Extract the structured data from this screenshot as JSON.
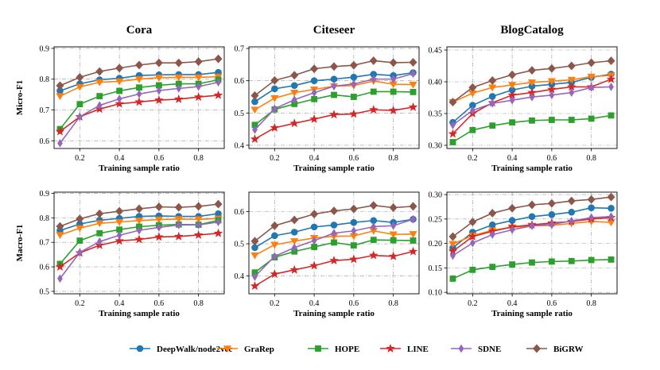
{
  "figure": {
    "xlabel": "Training sample ratio",
    "legend_location": "bottom"
  },
  "series_meta": [
    {
      "name": "DeepWalk/node2vec",
      "color": "#1f77b4",
      "marker": "circle"
    },
    {
      "name": "GraRep",
      "color": "#ff7f0e",
      "marker": "triangle-down"
    },
    {
      "name": "HOPE",
      "color": "#2ca02c",
      "marker": "square"
    },
    {
      "name": "LINE",
      "color": "#d62728",
      "marker": "star"
    },
    {
      "name": "SDNE",
      "color": "#9467bd",
      "marker": "diamond-thin"
    },
    {
      "name": "BiGRW",
      "color": "#8c564b",
      "marker": "diamond"
    }
  ],
  "chart_data": [
    {
      "type": "line",
      "title": "Cora",
      "ylabel": "Micro-F1",
      "xlabel": "Training sample ratio",
      "xlim": [
        0.07,
        0.93
      ],
      "ylim": [
        0.575,
        0.905
      ],
      "xticks": [
        0.2,
        0.4,
        0.6,
        0.8
      ],
      "xtick_labels": [
        "0.2",
        "0.4",
        "0.6",
        "0.8"
      ],
      "yticks": [
        0.6,
        0.7,
        0.8,
        0.9
      ],
      "ytick_labels": [
        "0.6",
        "0.7",
        "0.8",
        "0.9"
      ],
      "x": [
        0.1,
        0.2,
        0.3,
        0.4,
        0.5,
        0.6,
        0.7,
        0.8,
        0.9
      ],
      "series": [
        {
          "name": "DeepWalk/node2vec",
          "values": [
            0.762,
            0.785,
            0.798,
            0.803,
            0.812,
            0.814,
            0.815,
            0.815,
            0.822
          ]
        },
        {
          "name": "GraRep",
          "values": [
            0.745,
            0.775,
            0.79,
            0.793,
            0.8,
            0.805,
            0.806,
            0.806,
            0.808
          ]
        },
        {
          "name": "HOPE",
          "values": [
            0.638,
            0.719,
            0.745,
            0.762,
            0.773,
            0.78,
            0.785,
            0.785,
            0.798
          ]
        },
        {
          "name": "LINE",
          "values": [
            0.63,
            0.678,
            0.703,
            0.72,
            0.726,
            0.732,
            0.735,
            0.742,
            0.748
          ]
        },
        {
          "name": "SDNE",
          "values": [
            0.592,
            0.678,
            0.715,
            0.736,
            0.752,
            0.763,
            0.77,
            0.776,
            0.79
          ]
        },
        {
          "name": "BiGRW",
          "values": [
            0.779,
            0.806,
            0.825,
            0.836,
            0.846,
            0.853,
            0.853,
            0.857,
            0.866
          ]
        }
      ]
    },
    {
      "type": "line",
      "title": "Citeseer",
      "ylabel": "",
      "xlabel": "Training sample ratio",
      "xlim": [
        0.07,
        0.93
      ],
      "ylim": [
        0.39,
        0.705
      ],
      "xticks": [
        0.2,
        0.4,
        0.6,
        0.8
      ],
      "xtick_labels": [
        "0.2",
        "0.4",
        "0.6",
        "0.8"
      ],
      "yticks": [
        0.4,
        0.5,
        0.6,
        0.7
      ],
      "ytick_labels": [
        "0.4",
        "0.5",
        "0.6",
        "0.7"
      ],
      "x": [
        0.1,
        0.2,
        0.3,
        0.4,
        0.5,
        0.6,
        0.7,
        0.8,
        0.9
      ],
      "series": [
        {
          "name": "DeepWalk/node2vec",
          "values": [
            0.535,
            0.575,
            0.585,
            0.6,
            0.605,
            0.611,
            0.62,
            0.616,
            0.625
          ]
        },
        {
          "name": "GraRep",
          "values": [
            0.51,
            0.546,
            0.563,
            0.573,
            0.583,
            0.585,
            0.599,
            0.589,
            0.588
          ]
        },
        {
          "name": "HOPE",
          "values": [
            0.463,
            0.511,
            0.528,
            0.543,
            0.556,
            0.55,
            0.566,
            0.566,
            0.565
          ]
        },
        {
          "name": "LINE",
          "values": [
            0.419,
            0.454,
            0.468,
            0.481,
            0.495,
            0.497,
            0.51,
            0.508,
            0.518
          ]
        },
        {
          "name": "SDNE",
          "values": [
            0.448,
            0.513,
            0.541,
            0.563,
            0.583,
            0.59,
            0.605,
            0.605,
            0.622
          ]
        },
        {
          "name": "BiGRW",
          "values": [
            0.554,
            0.601,
            0.617,
            0.637,
            0.644,
            0.648,
            0.662,
            0.656,
            0.657
          ]
        }
      ]
    },
    {
      "type": "line",
      "title": "BlogCatalog",
      "ylabel": "",
      "xlabel": "Training sample ratio",
      "xlim": [
        0.07,
        0.93
      ],
      "ylim": [
        0.295,
        0.455
      ],
      "xticks": [
        0.2,
        0.4,
        0.6,
        0.8
      ],
      "xtick_labels": [
        "0.2",
        "0.4",
        "0.6",
        "0.8"
      ],
      "yticks": [
        0.3,
        0.35,
        0.4,
        0.45
      ],
      "ytick_labels": [
        "0.30",
        "0.35",
        "0.40",
        "0.45"
      ],
      "x": [
        0.1,
        0.2,
        0.3,
        0.4,
        0.5,
        0.6,
        0.7,
        0.8,
        0.9
      ],
      "series": [
        {
          "name": "DeepWalk/node2vec",
          "values": [
            0.336,
            0.363,
            0.377,
            0.387,
            0.393,
            0.396,
            0.399,
            0.407,
            0.412
          ]
        },
        {
          "name": "GraRep",
          "values": [
            0.368,
            0.382,
            0.391,
            0.395,
            0.399,
            0.401,
            0.403,
            0.408,
            0.41
          ]
        },
        {
          "name": "HOPE",
          "values": [
            0.305,
            0.324,
            0.331,
            0.336,
            0.339,
            0.34,
            0.34,
            0.342,
            0.347
          ]
        },
        {
          "name": "LINE",
          "values": [
            0.318,
            0.35,
            0.367,
            0.379,
            0.383,
            0.388,
            0.392,
            0.392,
            0.404
          ]
        },
        {
          "name": "SDNE",
          "values": [
            0.332,
            0.355,
            0.366,
            0.371,
            0.376,
            0.379,
            0.383,
            0.391,
            0.392
          ]
        },
        {
          "name": "BiGRW",
          "values": [
            0.368,
            0.391,
            0.402,
            0.411,
            0.418,
            0.421,
            0.425,
            0.43,
            0.433
          ]
        }
      ]
    },
    {
      "type": "line",
      "title": "",
      "ylabel": "Macro-F1",
      "xlabel": "Training sample ratio",
      "xlim": [
        0.07,
        0.93
      ],
      "ylim": [
        0.49,
        0.905
      ],
      "xticks": [
        0.2,
        0.4,
        0.6,
        0.8
      ],
      "xtick_labels": [
        "0.2",
        "0.4",
        "0.6",
        "0.8"
      ],
      "yticks": [
        0.5,
        0.6,
        0.7,
        0.8,
        0.9
      ],
      "ytick_labels": [
        "0.5",
        "0.6",
        "0.7",
        "0.8",
        "0.9"
      ],
      "x": [
        0.1,
        0.2,
        0.3,
        0.4,
        0.5,
        0.6,
        0.7,
        0.8,
        0.9
      ],
      "series": [
        {
          "name": "DeepWalk/node2vec",
          "values": [
            0.748,
            0.775,
            0.79,
            0.798,
            0.806,
            0.808,
            0.806,
            0.806,
            0.817
          ]
        },
        {
          "name": "GraRep",
          "values": [
            0.73,
            0.758,
            0.778,
            0.783,
            0.789,
            0.793,
            0.795,
            0.794,
            0.797
          ]
        },
        {
          "name": "HOPE",
          "values": [
            0.612,
            0.707,
            0.737,
            0.752,
            0.764,
            0.77,
            0.773,
            0.772,
            0.79
          ]
        },
        {
          "name": "LINE",
          "values": [
            0.6,
            0.657,
            0.688,
            0.706,
            0.712,
            0.722,
            0.724,
            0.73,
            0.737
          ]
        },
        {
          "name": "SDNE",
          "values": [
            0.552,
            0.659,
            0.703,
            0.729,
            0.749,
            0.761,
            0.771,
            0.771,
            0.783
          ]
        },
        {
          "name": "BiGRW",
          "values": [
            0.765,
            0.796,
            0.817,
            0.827,
            0.837,
            0.845,
            0.843,
            0.847,
            0.856
          ]
        }
      ]
    },
    {
      "type": "line",
      "title": "",
      "ylabel": "",
      "xlabel": "Training sample ratio",
      "xlim": [
        0.07,
        0.93
      ],
      "ylim": [
        0.345,
        0.66
      ],
      "xticks": [
        0.2,
        0.4,
        0.6,
        0.8
      ],
      "xtick_labels": [
        "0.2",
        "0.4",
        "0.6",
        "0.8"
      ],
      "yticks": [
        0.4,
        0.5,
        0.6
      ],
      "ytick_labels": [
        "0.4",
        "0.5",
        "0.6"
      ],
      "x": [
        0.1,
        0.2,
        0.3,
        0.4,
        0.5,
        0.6,
        0.7,
        0.8,
        0.9
      ],
      "series": [
        {
          "name": "DeepWalk/node2vec",
          "values": [
            0.488,
            0.525,
            0.536,
            0.552,
            0.558,
            0.566,
            0.572,
            0.566,
            0.576
          ]
        },
        {
          "name": "GraRep",
          "values": [
            0.464,
            0.497,
            0.508,
            0.518,
            0.523,
            0.524,
            0.54,
            0.529,
            0.53
          ]
        },
        {
          "name": "HOPE",
          "values": [
            0.411,
            0.458,
            0.476,
            0.49,
            0.504,
            0.495,
            0.512,
            0.511,
            0.51
          ]
        },
        {
          "name": "LINE",
          "values": [
            0.369,
            0.406,
            0.419,
            0.432,
            0.448,
            0.452,
            0.464,
            0.461,
            0.476
          ]
        },
        {
          "name": "SDNE",
          "values": [
            0.398,
            0.461,
            0.488,
            0.51,
            0.533,
            0.54,
            0.553,
            0.556,
            0.576
          ]
        },
        {
          "name": "BiGRW",
          "values": [
            0.508,
            0.556,
            0.574,
            0.592,
            0.602,
            0.608,
            0.619,
            0.612,
            0.616
          ]
        }
      ]
    },
    {
      "type": "line",
      "title": "",
      "ylabel": "",
      "xlabel": "Training sample ratio",
      "xlim": [
        0.07,
        0.93
      ],
      "ylim": [
        0.097,
        0.305
      ],
      "xticks": [
        0.2,
        0.4,
        0.6,
        0.8
      ],
      "xtick_labels": [
        "0.2",
        "0.4",
        "0.6",
        "0.8"
      ],
      "yticks": [
        0.1,
        0.15,
        0.2,
        0.25,
        0.3
      ],
      "ytick_labels": [
        "0.10",
        "0.15",
        "0.20",
        "0.25",
        "0.30"
      ],
      "x": [
        0.1,
        0.2,
        0.3,
        0.4,
        0.5,
        0.6,
        0.7,
        0.8,
        0.9
      ],
      "series": [
        {
          "name": "DeepWalk/node2vec",
          "values": [
            0.191,
            0.223,
            0.238,
            0.247,
            0.255,
            0.259,
            0.264,
            0.273,
            0.272
          ]
        },
        {
          "name": "GraRep",
          "values": [
            0.199,
            0.216,
            0.227,
            0.233,
            0.236,
            0.237,
            0.241,
            0.245,
            0.243
          ]
        },
        {
          "name": "HOPE",
          "values": [
            0.128,
            0.146,
            0.152,
            0.157,
            0.161,
            0.163,
            0.164,
            0.166,
            0.167
          ]
        },
        {
          "name": "LINE",
          "values": [
            0.184,
            0.214,
            0.225,
            0.234,
            0.238,
            0.242,
            0.245,
            0.25,
            0.253
          ]
        },
        {
          "name": "SDNE",
          "values": [
            0.175,
            0.201,
            0.218,
            0.228,
            0.236,
            0.239,
            0.246,
            0.253,
            0.255
          ]
        },
        {
          "name": "BiGRW",
          "values": [
            0.214,
            0.244,
            0.262,
            0.272,
            0.279,
            0.282,
            0.287,
            0.29,
            0.295
          ]
        }
      ]
    }
  ]
}
